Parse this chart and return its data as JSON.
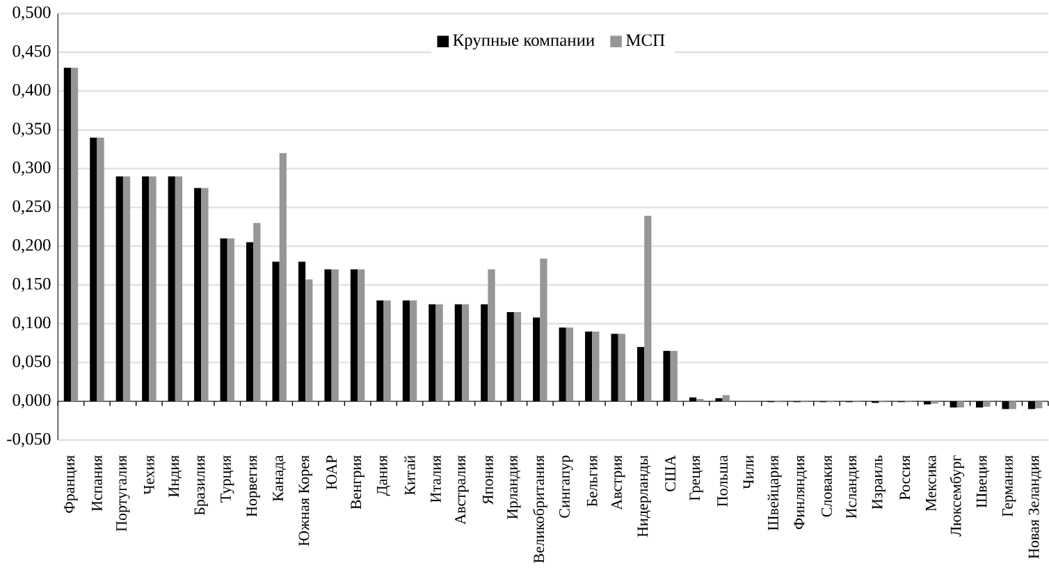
{
  "chart_data": {
    "type": "bar",
    "categories": [
      "Франция",
      "Испания",
      "Португалия",
      "Чехия",
      "Индия",
      "Бразилия",
      "Турция",
      "Норвегия",
      "Канада",
      "Южная Корея",
      "ЮАР",
      "Венгрия",
      "Дания",
      "Китай",
      "Италия",
      "Австралия",
      "Япония",
      "Ирландия",
      "Великобритания",
      "Сингапур",
      "Бельгия",
      "Австрия",
      "Нидерланды",
      "США",
      "Греция",
      "Польша",
      "Чили",
      "Швейцария",
      "Финляндия",
      "Словакия",
      "Исландия",
      "Израиль",
      "Россия",
      "Мексика",
      "Люксембург",
      "Швеция",
      "Германия",
      "Новая Зеландия"
    ],
    "series": [
      {
        "name": "Крупные компании",
        "color": "#000000",
        "values": [
          0.43,
          0.34,
          0.29,
          0.29,
          0.29,
          0.275,
          0.21,
          0.205,
          0.18,
          0.18,
          0.17,
          0.17,
          0.13,
          0.13,
          0.125,
          0.125,
          0.125,
          0.115,
          0.108,
          0.095,
          0.09,
          0.087,
          0.07,
          0.065,
          0.005,
          0.004,
          0,
          -0.001,
          -0.001,
          -0.001,
          -0.001,
          -0.002,
          -0.001,
          -0.004,
          -0.008,
          -0.008,
          -0.01,
          -0.01
        ]
      },
      {
        "name": "МСП",
        "color": "#969696",
        "values": [
          0.43,
          0.34,
          0.29,
          0.29,
          0.29,
          0.275,
          0.21,
          0.23,
          0.32,
          0.157,
          0.17,
          0.17,
          0.13,
          0.13,
          0.125,
          0.125,
          0.17,
          0.115,
          0.184,
          0.095,
          0.09,
          0.087,
          0.239,
          0.065,
          0.003,
          0.008,
          0,
          -0.001,
          -0.001,
          -0.001,
          -0.001,
          -0.001,
          -0.001,
          -0.003,
          -0.008,
          -0.007,
          -0.01,
          -0.009
        ]
      }
    ],
    "ylim": [
      -0.05,
      0.5
    ],
    "yticks": [
      {
        "value": -0.05,
        "label": "-0,050"
      },
      {
        "value": 0,
        "label": "0,000"
      },
      {
        "value": 0.05,
        "label": "0,050"
      },
      {
        "value": 0.1,
        "label": "0,100"
      },
      {
        "value": 0.15,
        "label": "0,150"
      },
      {
        "value": 0.2,
        "label": "0,200"
      },
      {
        "value": 0.25,
        "label": "0,250"
      },
      {
        "value": 0.3,
        "label": "0,300"
      },
      {
        "value": 0.35,
        "label": "0,350"
      },
      {
        "value": 0.4,
        "label": "0,400"
      },
      {
        "value": 0.45,
        "label": "0,450"
      },
      {
        "value": 0.5,
        "label": "0,500"
      }
    ],
    "grid": "y",
    "legend": "top"
  }
}
